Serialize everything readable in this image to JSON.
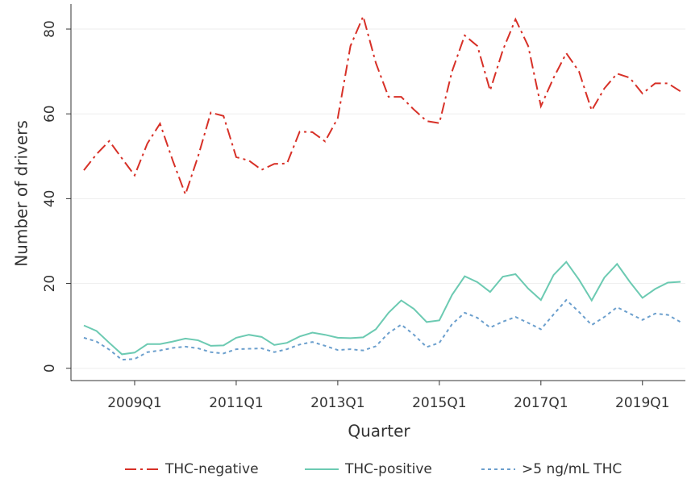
{
  "chart_data": {
    "type": "line",
    "xlabel": "Quarter",
    "ylabel": "Number of drivers",
    "categories": [
      null,
      null,
      null,
      null,
      "2009Q1",
      null,
      null,
      null,
      null,
      null,
      null,
      null,
      "2011Q1",
      null,
      null,
      null,
      null,
      null,
      null,
      null,
      "2013Q1",
      null,
      null,
      null,
      null,
      null,
      null,
      null,
      "2015Q1",
      null,
      null,
      null,
      null,
      null,
      null,
      null,
      "2017Q1",
      null,
      null,
      null,
      null,
      null,
      null,
      null,
      "2019Q1",
      null,
      null,
      null
    ],
    "ylim": [
      -2.9,
      85.9
    ],
    "yticks": [
      0,
      20,
      40,
      60,
      80
    ],
    "grid": true,
    "legend": "bottom",
    "series": [
      {
        "name": "THC-negative",
        "color": "#d73027",
        "dash": "14,5,3,5",
        "values": [
          46.7,
          50.5,
          53.6,
          49.5,
          45.5,
          53,
          57.7,
          49,
          41,
          50,
          60.3,
          59.5,
          49.8,
          49,
          46.8,
          48.2,
          48.3,
          55.8,
          55.7,
          53.5,
          59,
          76,
          83,
          72,
          64,
          64,
          61,
          58.3,
          57.8,
          70,
          78.5,
          76,
          65.5,
          75,
          82.3,
          76,
          61.8,
          68.5,
          74.3,
          70,
          60.8,
          66,
          69.5,
          68.5,
          64.8,
          67.2,
          67.2,
          65.3
        ]
      },
      {
        "name": "THC-positive",
        "color": "#6ccab2",
        "dash": "none",
        "values": [
          10.1,
          8.8,
          6,
          3.3,
          3.7,
          5.7,
          5.7,
          6.3,
          7,
          6.6,
          5.3,
          5.4,
          7.2,
          7.9,
          7.4,
          5.5,
          6,
          7.5,
          8.4,
          7.9,
          7.2,
          7.1,
          7.3,
          9.2,
          13.1,
          16,
          14,
          10.9,
          11.3,
          17.3,
          21.7,
          20.3,
          18,
          21.6,
          22.2,
          18.8,
          16.1,
          22,
          25.1,
          20.9,
          16,
          21.4,
          24.6,
          20.4,
          16.6,
          18.7,
          20.2,
          20.4
        ]
      },
      {
        "name": ">5 ng/mL THC",
        "color": "#6b9fcd",
        "dash": "4,4",
        "values": [
          7.2,
          6.3,
          4.4,
          2,
          2.2,
          3.8,
          4.2,
          4.8,
          5.1,
          4.7,
          3.8,
          3.5,
          4.5,
          4.6,
          4.7,
          3.8,
          4.5,
          5.6,
          6.2,
          5.3,
          4.3,
          4.5,
          4.2,
          5.2,
          8.3,
          10.3,
          7.9,
          5,
          6,
          10.4,
          13.1,
          11.9,
          9.6,
          11,
          12.1,
          10.7,
          9.2,
          12.7,
          16.1,
          13.3,
          10.2,
          12.1,
          14.4,
          12.9,
          11.4,
          12.9,
          12.6,
          10.9
        ]
      }
    ]
  }
}
